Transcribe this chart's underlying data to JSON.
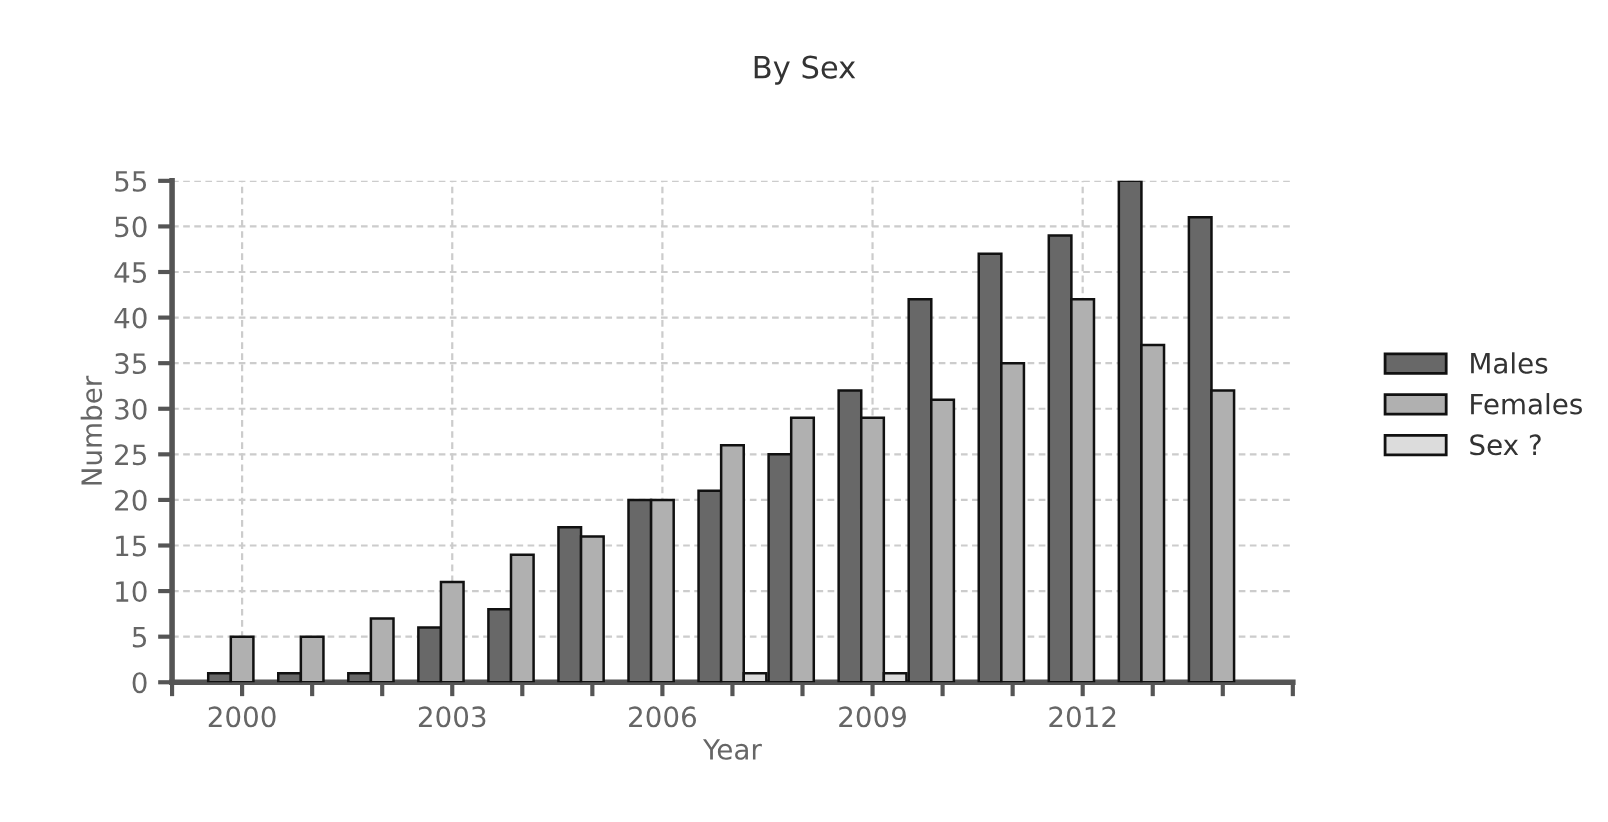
{
  "chart_data": {
    "type": "bar",
    "title": "By Sex",
    "xlabel": "Year",
    "ylabel": "Number",
    "x": [
      2000,
      2001,
      2002,
      2003,
      2004,
      2005,
      2006,
      2007,
      2008,
      2009,
      2010,
      2011,
      2012,
      2013,
      2014
    ],
    "series": [
      {
        "name": "Males",
        "color": "#686868",
        "values": [
          1,
          1,
          1,
          6,
          8,
          17,
          20,
          21,
          25,
          32,
          42,
          47,
          49,
          55,
          51
        ]
      },
      {
        "name": "Females",
        "color": "#b0b0b0",
        "values": [
          5,
          5,
          7,
          11,
          14,
          16,
          20,
          26,
          29,
          29,
          31,
          35,
          42,
          37,
          32
        ]
      },
      {
        "name": "Sex ?",
        "color": "#dcdcdc",
        "values": [
          null,
          null,
          null,
          null,
          null,
          null,
          null,
          1,
          null,
          1,
          null,
          null,
          null,
          null,
          null
        ]
      }
    ],
    "xlim": [
      1999,
      2015
    ],
    "xticks": [
      {
        "value": 1999,
        "label": null
      },
      2000,
      {
        "value": 2001,
        "label": null
      },
      {
        "value": 2002,
        "label": null
      },
      2003,
      {
        "value": 2004,
        "label": null
      },
      {
        "value": 2005,
        "label": null
      },
      2006,
      {
        "value": 2007,
        "label": null
      },
      {
        "value": 2008,
        "label": null
      },
      2009,
      {
        "value": 2010,
        "label": null
      },
      {
        "value": 2011,
        "label": null
      },
      2012,
      {
        "value": 2013,
        "label": null
      },
      {
        "value": 2014,
        "label": null
      },
      {
        "value": 2015,
        "label": null
      }
    ],
    "ylim": [
      0,
      55
    ],
    "yticks": [
      0,
      5,
      10,
      15,
      20,
      25,
      30,
      35,
      40,
      45,
      50,
      55
    ],
    "grid": true,
    "legend": "right"
  }
}
